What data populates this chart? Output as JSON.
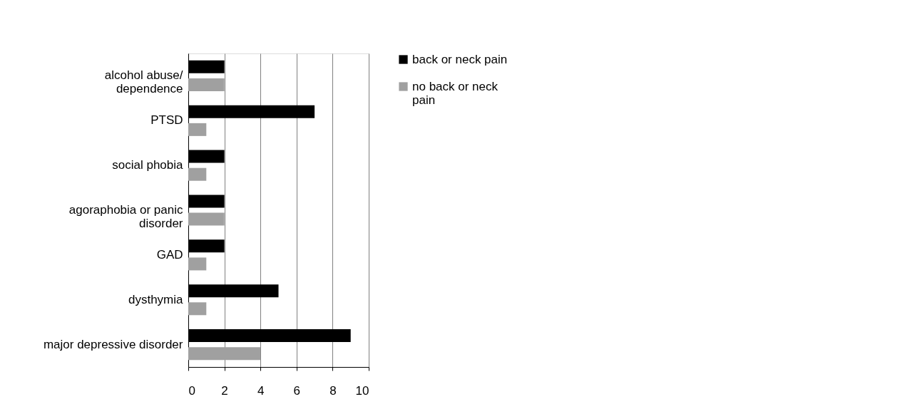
{
  "chart_data": {
    "type": "bar",
    "orientation": "horizontal",
    "categories": [
      "alcohol abuse/\ndependence",
      "PTSD",
      "social phobia",
      "agoraphobia or panic\ndisorder",
      "GAD",
      "dysthymia",
      "major depressive disorder"
    ],
    "series": [
      {
        "name": "back or neck pain",
        "color": "#000000",
        "values": [
          2,
          7,
          2,
          2,
          2,
          5,
          9
        ]
      },
      {
        "name": "no back or neck\npain",
        "color": "#a0a0a0",
        "values": [
          2,
          1,
          1,
          2,
          1,
          1,
          4
        ]
      }
    ],
    "xlim": [
      0,
      10
    ],
    "xticks": [
      0,
      2,
      4,
      6,
      8,
      10
    ],
    "grid": "x",
    "legend": "right"
  }
}
